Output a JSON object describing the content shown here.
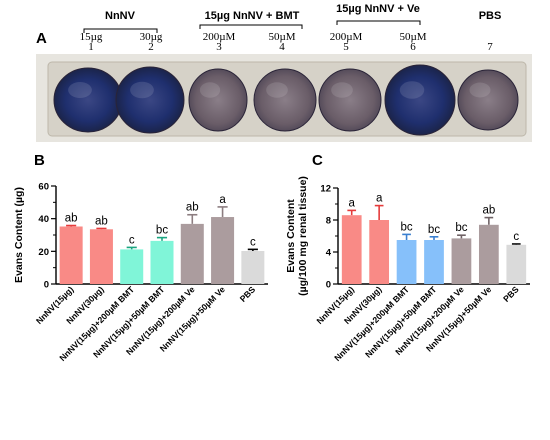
{
  "panelA": {
    "label": "A",
    "groups": [
      {
        "name": "NnNV",
        "doses": [
          "15µg",
          "30µg"
        ],
        "lanes": [
          "1",
          "2"
        ]
      },
      {
        "name": "15µg NnNV + BMT",
        "doses": [
          "200µM",
          "50µM"
        ],
        "lanes": [
          "3",
          "4"
        ]
      },
      {
        "name": "15µg NnNV + Ve",
        "doses": [
          "200µM",
          "50µM"
        ],
        "lanes": [
          "5",
          "6"
        ]
      },
      {
        "name": "PBS",
        "doses": [
          ""
        ],
        "lanes": [
          "7"
        ]
      }
    ],
    "colors": {
      "background": "#e7e5df",
      "tray": "#d6d2c8",
      "dye": "#1f2f6e",
      "tissue": "#6a5d68"
    }
  },
  "chart_data": [
    {
      "panel": "B",
      "type": "bar",
      "title": "",
      "xlabel": "",
      "ylabel": "Evans Content (µg)",
      "ylim": [
        0,
        60
      ],
      "yticks": [
        "0",
        "20",
        "40",
        "60"
      ],
      "categories": [
        "NnNV(15µg)",
        "NnNV(30µg)",
        "NnNV(15µg)+200µM BMT",
        "NnNV(15µg)+50µM BMT",
        "NnNV(15µg)+200µM Ve",
        "NnNV(15µg)+50µM Ve",
        "PBS"
      ],
      "values": [
        35.2,
        33.5,
        21.2,
        26.4,
        36.8,
        41.0,
        20.2
      ],
      "errors": [
        0.6,
        0.5,
        1.2,
        2.0,
        5.6,
        6.2,
        1.0
      ],
      "significance": [
        "ab",
        "ab",
        "c",
        "bc",
        "ab",
        "a",
        "c"
      ],
      "colors": [
        "#f98a86",
        "#f98a86",
        "#80f5d8",
        "#80f5d8",
        "#ab9c9e",
        "#ab9c9e",
        "#dadada"
      ]
    },
    {
      "panel": "C",
      "type": "bar",
      "title": "",
      "xlabel": "",
      "ylabel": "Evans Content (µg/100 mg renal tissue)",
      "ylim": [
        0,
        12
      ],
      "yticks": [
        "0",
        "4",
        "8",
        "12"
      ],
      "categories": [
        "NnNV(15µg)",
        "NnNV(30µg)",
        "NnNV(15µg)+200µM BMT",
        "NnNV(15µg)+50µM BMT",
        "NnNV(15µg)+200µM Ve",
        "NnNV(15µg)+50µM Ve",
        "PBS"
      ],
      "values": [
        8.6,
        8.0,
        5.5,
        5.5,
        5.7,
        7.4,
        4.9
      ],
      "errors": [
        0.6,
        1.8,
        0.7,
        0.4,
        0.4,
        0.9,
        0.1
      ],
      "significance": [
        "a",
        "a",
        "bc",
        "bc",
        "bc",
        "ab",
        "c"
      ],
      "colors": [
        "#f98a86",
        "#f98a86",
        "#86c0fa",
        "#86c0fa",
        "#ab9c9e",
        "#ab9c9e",
        "#dadada"
      ]
    }
  ]
}
